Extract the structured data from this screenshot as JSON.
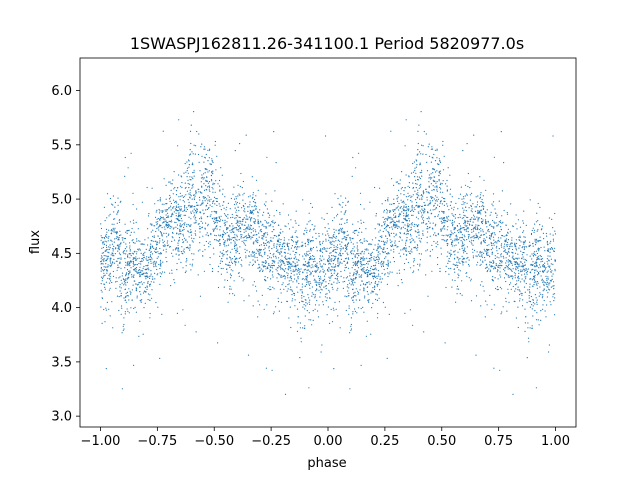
{
  "chart_data": {
    "type": "scatter",
    "title": "1SWASPJ162811.26-341100.1 Period 5820977.0s",
    "xlabel": "phase",
    "ylabel": "flux",
    "xlim": [
      -1.09,
      1.09
    ],
    "ylim": [
      2.9,
      6.3
    ],
    "x_ticks": [
      -1.0,
      -0.75,
      -0.5,
      -0.25,
      0.0,
      0.25,
      0.5,
      0.75,
      1.0
    ],
    "x_tick_labels": [
      "−1.00",
      "−0.75",
      "−0.50",
      "−0.25",
      "0.00",
      "0.25",
      "0.50",
      "0.75",
      "1.00"
    ],
    "y_ticks": [
      3.0,
      3.5,
      4.0,
      4.5,
      5.0,
      5.5,
      6.0
    ],
    "y_tick_labels": [
      "3.0",
      "3.5",
      "4.0",
      "4.5",
      "5.0",
      "5.5",
      "6.0"
    ],
    "grid": false,
    "point_color": "#1f77b4",
    "phase_profile": {
      "phase": [
        0.0,
        0.03,
        0.06,
        0.08,
        0.1,
        0.12,
        0.14,
        0.17,
        0.2,
        0.22,
        0.24,
        0.27,
        0.3,
        0.33,
        0.36,
        0.38,
        0.4,
        0.43,
        0.45,
        0.48,
        0.5,
        0.53,
        0.55,
        0.58,
        0.6,
        0.63,
        0.65,
        0.68,
        0.7,
        0.73,
        0.76,
        0.8,
        0.83,
        0.86,
        0.88,
        0.9,
        0.93,
        0.96,
        1.0
      ],
      "median_flux": [
        4.4,
        4.45,
        4.6,
        4.5,
        4.2,
        4.35,
        4.4,
        4.35,
        4.3,
        4.4,
        4.5,
        4.65,
        4.75,
        4.8,
        4.7,
        4.85,
        4.95,
        4.9,
        5.0,
        5.0,
        4.95,
        4.75,
        4.55,
        4.6,
        4.7,
        4.8,
        4.75,
        4.7,
        4.6,
        4.55,
        4.5,
        4.45,
        4.4,
        4.4,
        4.2,
        4.35,
        4.4,
        4.35,
        4.4
      ],
      "scatter": [
        0.22,
        0.2,
        0.22,
        0.25,
        0.25,
        0.22,
        0.18,
        0.18,
        0.18,
        0.2,
        0.22,
        0.22,
        0.22,
        0.22,
        0.22,
        0.25,
        0.3,
        0.28,
        0.28,
        0.25,
        0.25,
        0.25,
        0.22,
        0.22,
        0.22,
        0.22,
        0.22,
        0.22,
        0.22,
        0.22,
        0.22,
        0.2,
        0.2,
        0.2,
        0.25,
        0.25,
        0.22,
        0.22,
        0.22
      ]
    }
  }
}
